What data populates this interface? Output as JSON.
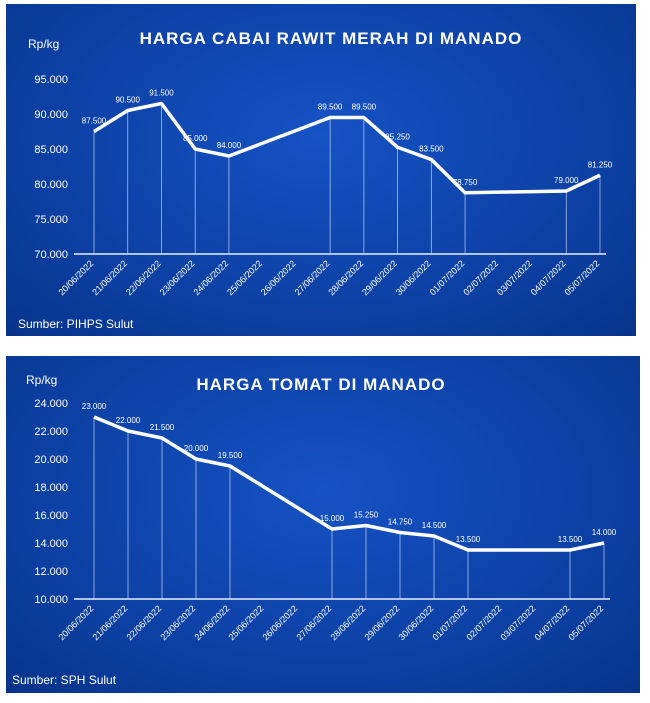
{
  "chart_data": [
    {
      "type": "line",
      "title": "HARGA CABAI RAWIT MERAH DI MANADO",
      "ylabel": "Rp/kg",
      "source": "Sumber: PIHPS Sulut",
      "ylim": [
        70000,
        95000
      ],
      "yticks": [
        "70.000",
        "75.000",
        "80.000",
        "85.000",
        "90.000",
        "95.000"
      ],
      "ytick_values": [
        70000,
        75000,
        80000,
        85000,
        90000,
        95000
      ],
      "categories": [
        "20/06/2022",
        "21/06/2022",
        "22/06/2022",
        "23/06/2022",
        "24/06/2022",
        "25/06/2022",
        "26/06/2022",
        "27/06/2022",
        "28/06/2022",
        "29/06/2022",
        "30/06/2022",
        "01/07/2022",
        "02/07/2022",
        "03/07/2022",
        "04/07/2022",
        "05/07/2022"
      ],
      "values": [
        87500,
        90500,
        91500,
        85000,
        84000,
        null,
        null,
        89500,
        89500,
        85250,
        83500,
        78750,
        null,
        null,
        79000,
        81250
      ],
      "data_labels": [
        "87.500",
        "90.500",
        "91.500",
        "85.000",
        "84.000",
        null,
        null,
        "89.500",
        "89.500",
        "85.250",
        "83.500",
        "78.750",
        null,
        null,
        "79.000",
        "81.250"
      ],
      "grid": false
    },
    {
      "type": "line",
      "title": "HARGA TOMAT DI MANADO",
      "ylabel": "Rp/kg",
      "source": "Sumber: SPH Sulut",
      "ylim": [
        10000,
        24000
      ],
      "yticks": [
        "10.000",
        "12.000",
        "14.000",
        "16.000",
        "18.000",
        "20.000",
        "22.000",
        "24.000"
      ],
      "ytick_values": [
        10000,
        12000,
        14000,
        16000,
        18000,
        20000,
        22000,
        24000
      ],
      "categories": [
        "20/06/2022",
        "21/06/2022",
        "22/06/2022",
        "23/06/2022",
        "24/06/2022",
        "25/06/2022",
        "26/06/2022",
        "27/06/2022",
        "28/06/2022",
        "29/06/2022",
        "30/06/2022",
        "01/07/2022",
        "02/07/2022",
        "03/07/2022",
        "04/07/2022",
        "05/07/2022"
      ],
      "values": [
        23000,
        22000,
        21500,
        20000,
        19500,
        null,
        null,
        15000,
        15250,
        14750,
        14500,
        13500,
        null,
        null,
        13500,
        14000
      ],
      "data_labels": [
        "23.000",
        "22.000",
        "21.500",
        "20.000",
        "19.500",
        null,
        null,
        "15.000",
        "15.250",
        "14.750",
        "14.500",
        "13.500",
        null,
        null,
        "13.500",
        "14.000"
      ],
      "grid": false
    }
  ]
}
